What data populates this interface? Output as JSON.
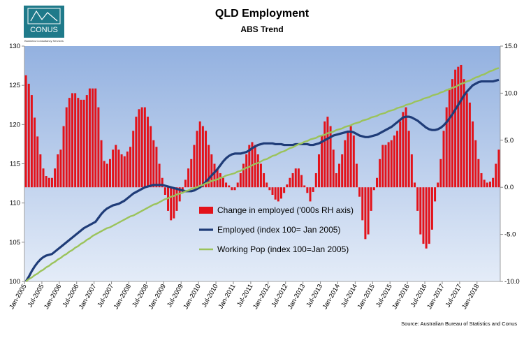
{
  "logo": {
    "name": "CONUS",
    "tagline": "Business Consultancy Services"
  },
  "chart_data": {
    "type": "combo",
    "title": "QLD Employment",
    "subtitle": "ABS Trend",
    "source": "Source: Australian Bureau of Statistics and Conus",
    "legend_position": "center",
    "categories": [
      "Jan-2005",
      null,
      null,
      null,
      null,
      null,
      "Jul-2005",
      null,
      null,
      null,
      null,
      null,
      "Jan-2006",
      null,
      null,
      null,
      null,
      null,
      "Jul-2006",
      null,
      null,
      null,
      null,
      null,
      "Jan-2007",
      null,
      null,
      null,
      null,
      null,
      "Jul-2007",
      null,
      null,
      null,
      null,
      null,
      "Jan-2008",
      null,
      null,
      null,
      null,
      null,
      "Jul-2008",
      null,
      null,
      null,
      null,
      null,
      "Jan-2009",
      null,
      null,
      null,
      null,
      null,
      "Jul-2009",
      null,
      null,
      null,
      null,
      null,
      "Jan-2010",
      null,
      null,
      null,
      null,
      null,
      "Jul-2010",
      null,
      null,
      null,
      null,
      null,
      "Jan-2011",
      null,
      null,
      null,
      null,
      null,
      "Jul-2011",
      null,
      null,
      null,
      null,
      null,
      "Jan-2012",
      null,
      null,
      null,
      null,
      null,
      "Jul-2012",
      null,
      null,
      null,
      null,
      null,
      "Jan-2013",
      null,
      null,
      null,
      null,
      null,
      "Jul-2013",
      null,
      null,
      null,
      null,
      null,
      "Jan-2014",
      null,
      null,
      null,
      null,
      null,
      "Jul-2014",
      null,
      null,
      null,
      null,
      null,
      "Jan-2015",
      null,
      null,
      null,
      null,
      null,
      "Jul-2015",
      null,
      null,
      null,
      null,
      null,
      "Jan-2016",
      null,
      null,
      null,
      null,
      null,
      "Jul-2016",
      null,
      null,
      null,
      null,
      null,
      "Jan-2017",
      null,
      null,
      null,
      null,
      null,
      "Jul-2017",
      null,
      null,
      null,
      null,
      null,
      "Jan-2018",
      null,
      null,
      null,
      null,
      null,
      null,
      null
    ],
    "ylim": [
      100,
      130
    ],
    "yticks": [
      100,
      105,
      110,
      115,
      120,
      125,
      130
    ],
    "y2lim": [
      -10,
      15
    ],
    "y2ticks": [
      {
        "value": -10,
        "label": "-10.0"
      },
      {
        "value": -5,
        "label": "-5.0"
      },
      {
        "value": 0,
        "label": "0.0"
      },
      {
        "value": 5,
        "label": "5.0"
      },
      {
        "value": 10,
        "label": "10.0"
      },
      {
        "value": 15,
        "label": "15.0"
      }
    ],
    "series": [
      {
        "name": "Change in employed ('000s RH axis)",
        "type": "bar",
        "axis": "y2",
        "color": "#e3121a",
        "values": [
          11.9,
          11.0,
          9.8,
          7.4,
          5.4,
          3.5,
          2.0,
          1.2,
          1.0,
          1.0,
          2.0,
          3.5,
          4.0,
          6.5,
          8.5,
          9.5,
          10.0,
          10.0,
          9.5,
          9.3,
          9.3,
          9.8,
          10.5,
          10.5,
          10.5,
          8.5,
          5.0,
          2.8,
          2.5,
          3.0,
          4.0,
          4.5,
          4.0,
          3.5,
          3.3,
          3.8,
          4.3,
          6.0,
          7.5,
          8.3,
          8.5,
          8.5,
          7.5,
          6.5,
          5.0,
          4.3,
          2.5,
          1.0,
          -0.8,
          -2.5,
          -3.5,
          -3.3,
          -2.5,
          -1.5,
          -0.5,
          0.8,
          2.0,
          3.0,
          4.5,
          6.0,
          7.0,
          6.5,
          6.0,
          4.5,
          3.5,
          2.5,
          2.0,
          1.5,
          1.0,
          0.5,
          0.2,
          -0.3,
          -0.3,
          0.5,
          1.5,
          2.5,
          3.5,
          4.5,
          4.8,
          4.5,
          3.5,
          2.5,
          1.5,
          0.5,
          -0.3,
          -0.8,
          -1.3,
          -1.5,
          -1.2,
          -0.6,
          0.3,
          1.0,
          1.5,
          2.0,
          2.0,
          1.3,
          0.2,
          -0.6,
          -1.5,
          -0.5,
          1.5,
          3.5,
          5.5,
          7.0,
          7.5,
          6.5,
          4.0,
          1.5,
          2.5,
          3.5,
          5.0,
          6.0,
          6.5,
          5.5,
          2.5,
          -1.0,
          -3.5,
          -5.5,
          -5.0,
          -2.5,
          -0.3,
          1.0,
          3.0,
          4.5,
          4.5,
          4.8,
          5.0,
          5.5,
          6.0,
          7.0,
          8.0,
          8.5,
          6.0,
          3.5,
          0.5,
          -2.5,
          -5.0,
          -6.0,
          -6.5,
          -6.0,
          -4.5,
          -1.5,
          0.5,
          3.0,
          6.0,
          8.5,
          10.5,
          11.5,
          12.5,
          12.8,
          13.0,
          11.5,
          10.0,
          9.0,
          7.0,
          5.0,
          3.0,
          1.5,
          0.8,
          0.5,
          0.6,
          1.0,
          2.5,
          4.0
        ]
      },
      {
        "name": "Employed (index 100= Jan 2005)",
        "type": "line",
        "axis": "y",
        "color": "#1f3c78",
        "values": [
          100.0,
          100.6,
          101.3,
          101.9,
          102.4,
          102.8,
          103.1,
          103.3,
          103.4,
          103.5,
          103.8,
          104.1,
          104.4,
          104.7,
          105.0,
          105.3,
          105.6,
          105.9,
          106.2,
          106.5,
          106.8,
          107.0,
          107.2,
          107.4,
          107.6,
          108.1,
          108.6,
          109.0,
          109.3,
          109.5,
          109.7,
          109.8,
          109.9,
          110.1,
          110.3,
          110.6,
          110.9,
          111.2,
          111.4,
          111.6,
          111.8,
          112.0,
          112.1,
          112.2,
          112.3,
          112.3,
          112.3,
          112.3,
          112.2,
          112.1,
          112.0,
          111.9,
          111.8,
          111.7,
          111.6,
          111.5,
          111.5,
          111.5,
          111.6,
          111.8,
          112.0,
          112.3,
          112.7,
          113.1,
          113.5,
          113.9,
          114.3,
          114.8,
          115.3,
          115.7,
          116.0,
          116.2,
          116.3,
          116.3,
          116.3,
          116.4,
          116.5,
          116.7,
          117.0,
          117.2,
          117.4,
          117.5,
          117.6,
          117.6,
          117.6,
          117.6,
          117.5,
          117.5,
          117.5,
          117.4,
          117.4,
          117.4,
          117.4,
          117.5,
          117.5,
          117.5,
          117.5,
          117.5,
          117.4,
          117.4,
          117.5,
          117.6,
          117.8,
          118.0,
          118.2,
          118.4,
          118.6,
          118.7,
          118.8,
          118.9,
          119.0,
          119.1,
          119.1,
          119.0,
          118.8,
          118.6,
          118.5,
          118.4,
          118.4,
          118.5,
          118.6,
          118.7,
          118.9,
          119.1,
          119.3,
          119.5,
          119.7,
          120.0,
          120.3,
          120.6,
          120.9,
          121.0,
          121.0,
          120.9,
          120.7,
          120.5,
          120.2,
          119.9,
          119.6,
          119.4,
          119.3,
          119.3,
          119.4,
          119.6,
          119.9,
          120.3,
          120.8,
          121.3,
          121.9,
          122.5,
          123.1,
          123.7,
          124.2,
          124.6,
          125.0,
          125.2,
          125.4,
          125.5,
          125.5,
          125.5,
          125.5,
          125.5,
          125.6,
          125.7
        ]
      },
      {
        "name": "Working Pop (index 100=Jan 2005)",
        "type": "line",
        "axis": "y",
        "color": "#9bc35a",
        "values": [
          100.0,
          100.3,
          100.5,
          100.8,
          101.0,
          101.3,
          101.5,
          101.8,
          102.0,
          102.3,
          102.5,
          102.8,
          103.0,
          103.3,
          103.5,
          103.8,
          104.0,
          104.3,
          104.5,
          104.8,
          105.0,
          105.3,
          105.5,
          105.8,
          106.0,
          106.2,
          106.4,
          106.6,
          106.8,
          106.9,
          107.1,
          107.3,
          107.5,
          107.7,
          107.9,
          108.1,
          108.3,
          108.4,
          108.6,
          108.8,
          109.0,
          109.2,
          109.4,
          109.6,
          109.8,
          109.9,
          110.1,
          110.3,
          110.5,
          110.6,
          110.8,
          110.9,
          111.1,
          111.2,
          111.3,
          111.5,
          111.6,
          111.8,
          111.9,
          112.0,
          112.2,
          112.3,
          112.5,
          112.6,
          112.8,
          112.9,
          113.0,
          113.2,
          113.3,
          113.5,
          113.6,
          113.7,
          113.8,
          114.0,
          114.1,
          114.3,
          114.5,
          114.6,
          114.8,
          115.0,
          115.1,
          115.3,
          115.5,
          115.6,
          115.8,
          116.0,
          116.1,
          116.3,
          116.5,
          116.6,
          116.8,
          117.0,
          117.1,
          117.3,
          117.5,
          117.6,
          117.8,
          117.9,
          118.1,
          118.2,
          118.3,
          118.5,
          118.6,
          118.7,
          118.9,
          119.0,
          119.1,
          119.3,
          119.4,
          119.5,
          119.7,
          119.8,
          119.9,
          120.1,
          120.2,
          120.3,
          120.5,
          120.6,
          120.7,
          120.9,
          121.0,
          121.1,
          121.3,
          121.4,
          121.5,
          121.7,
          121.8,
          121.9,
          122.1,
          122.2,
          122.3,
          122.5,
          122.6,
          122.7,
          122.9,
          123.0,
          123.1,
          123.3,
          123.4,
          123.5,
          123.7,
          123.8,
          123.9,
          124.1,
          124.2,
          124.4,
          124.5,
          124.7,
          124.8,
          125.0,
          125.2,
          125.3,
          125.5,
          125.6,
          125.8,
          126.0,
          126.1,
          126.3,
          126.4,
          126.6,
          126.8,
          126.9,
          127.1,
          127.2
        ]
      }
    ]
  }
}
